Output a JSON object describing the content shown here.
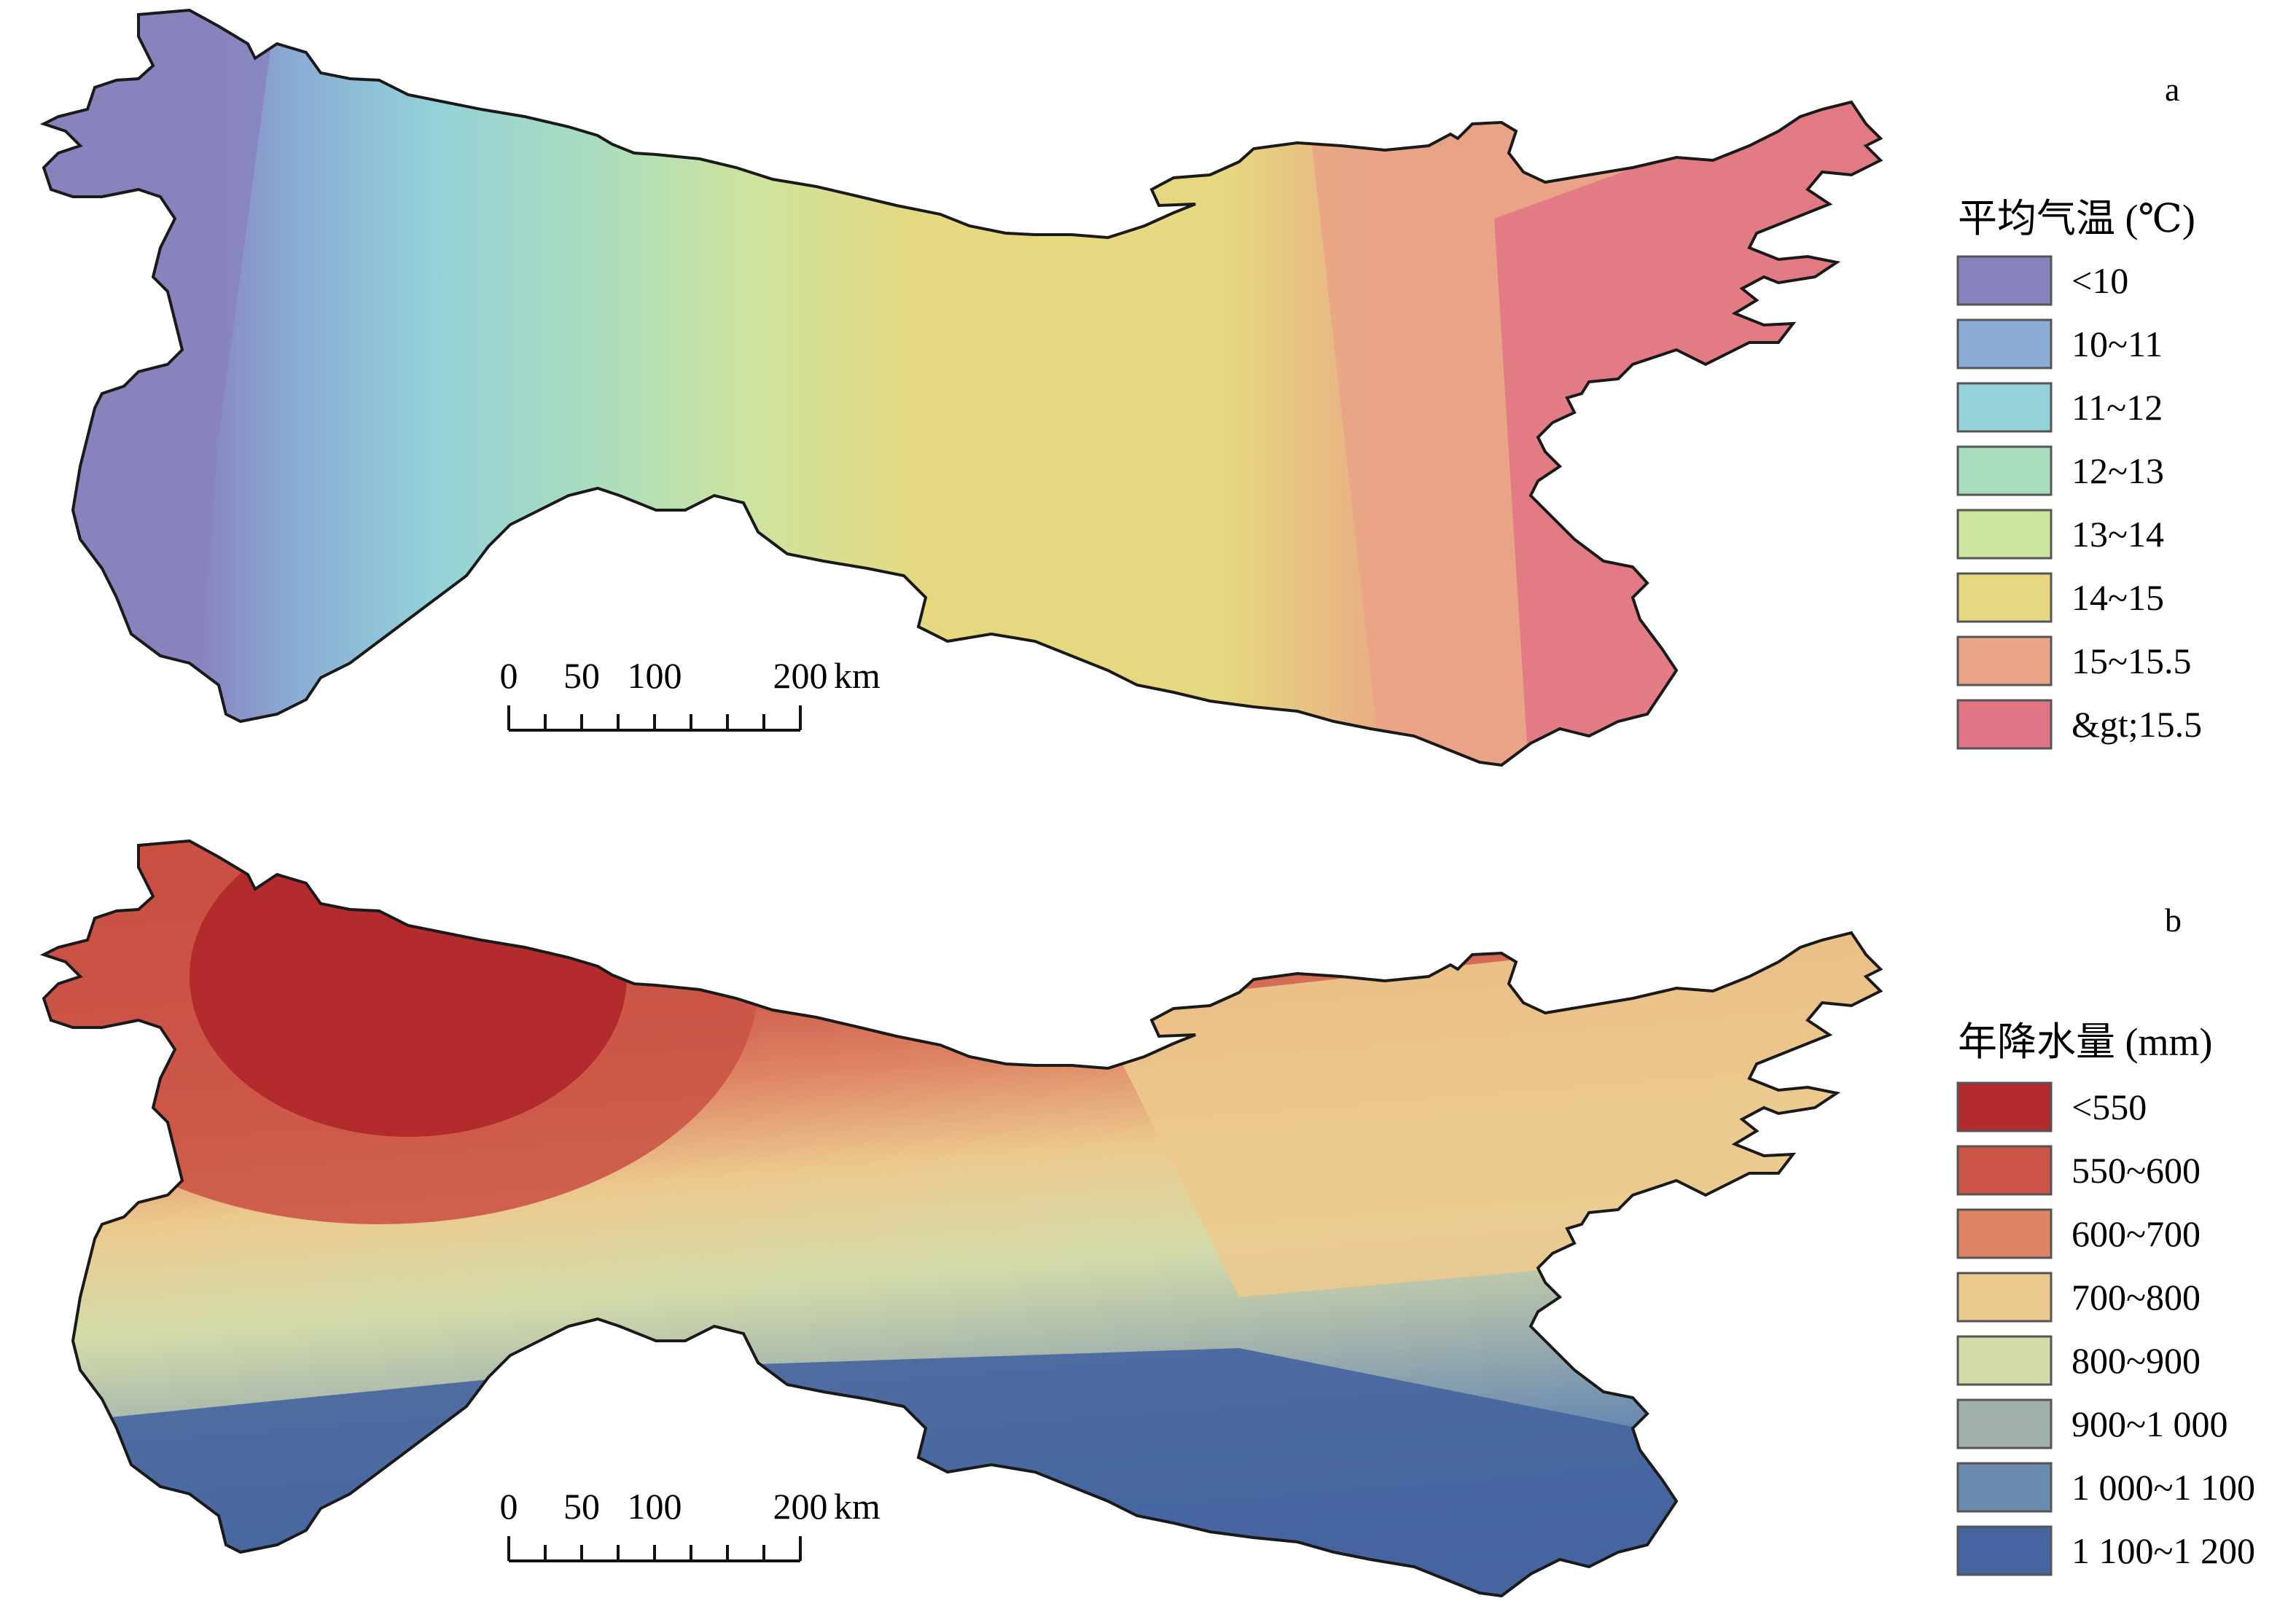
{
  "panels": [
    {
      "letter": "a",
      "legend_title": "平均气温 (℃)",
      "classes": [
        {
          "label": "<10",
          "color": "#8882bd"
        },
        {
          "label": "10~11",
          "color": "#8aacd6"
        },
        {
          "label": "11~12",
          "color": "#94d1d8"
        },
        {
          "label": "12~13",
          "color": "#a9dcbf"
        },
        {
          "label": "13~14",
          "color": "#cde49f"
        },
        {
          "label": "14~15",
          "color": "#e6d880"
        },
        {
          "label": "15~15.5",
          "color": "#e9a386"
        },
        {
          "label": "&gt;15.5",
          "color": "#e17484"
        }
      ],
      "scale_bar": {
        "ticks": [
          "0",
          "50",
          "100",
          "200"
        ],
        "unit": "km"
      }
    },
    {
      "letter": "b",
      "legend_title": "年降水量 (mm)",
      "classes": [
        {
          "label": "<550",
          "color": "#b42b2e"
        },
        {
          "label": "550~600",
          "color": "#cb5446"
        },
        {
          "label": "600~700",
          "color": "#de8465"
        },
        {
          "label": "700~800",
          "color": "#ecc98e"
        },
        {
          "label": "800~900",
          "color": "#d4dcaa"
        },
        {
          "label": "900~1 000",
          "color": "#a0b1ad"
        },
        {
          "label": "1 000~1 100",
          "color": "#6a8bb0"
        },
        {
          "label": "1 100~1 200",
          "color": "#4564a0"
        }
      ],
      "scale_bar": {
        "ticks": [
          "0",
          "50",
          "100",
          "200"
        ],
        "unit": "km"
      }
    }
  ]
}
